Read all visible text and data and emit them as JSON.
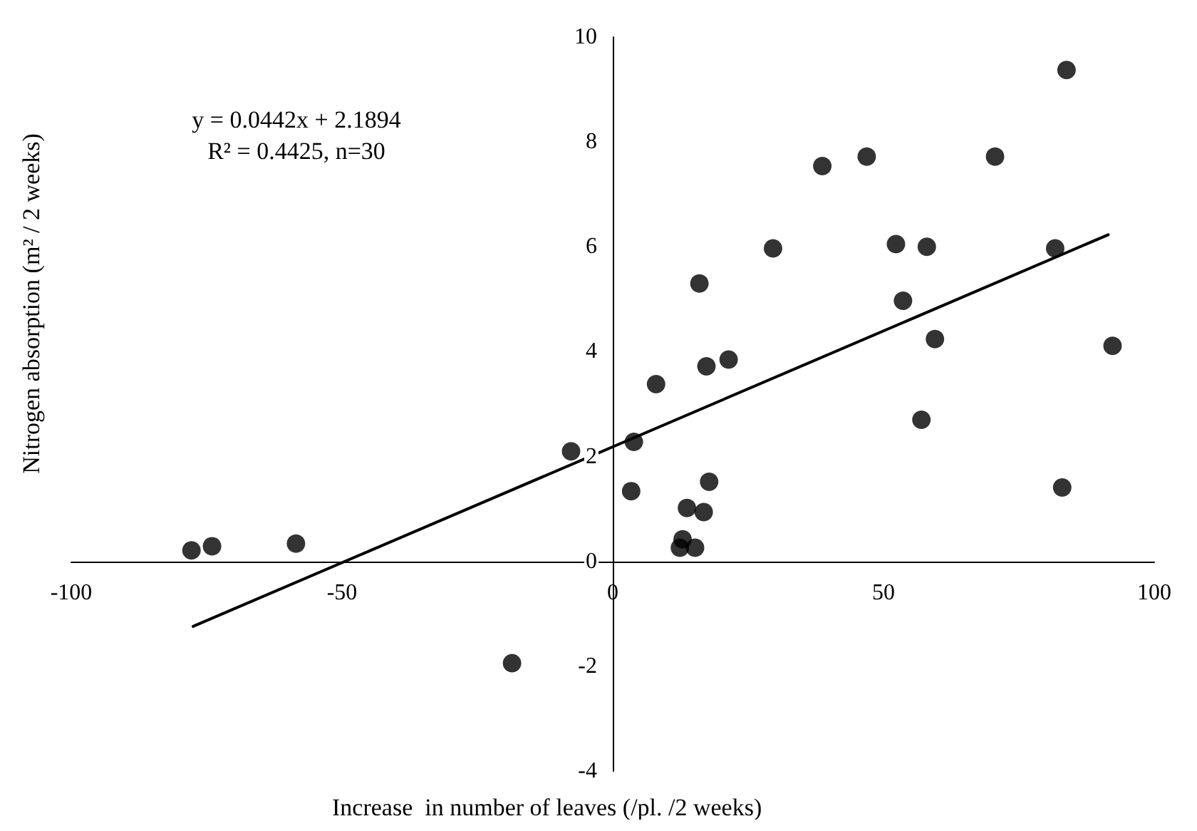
{
  "chart_data": {
    "type": "scatter",
    "xlabel": "Increase  in number of leaves (/pl. /2 weeks)",
    "ylabel": "Nitrogen absorption (m² / 2 weeks)",
    "annotations": [
      "y = 0.0442x + 2.1894",
      "R² = 0.4425, n=30"
    ],
    "xlim": [
      -100,
      100
    ],
    "xticks": [
      -100,
      -50,
      0,
      50,
      100
    ],
    "ylim": [
      -4,
      10
    ],
    "yticks": [
      -4,
      -2,
      0,
      2,
      4,
      6,
      8,
      10
    ],
    "grid": false,
    "marker": "circle",
    "series": [
      {
        "color": "#000000",
        "x": [
          -77.8,
          -74,
          -58.5,
          -7.7,
          -18.6,
          3.9,
          3.4,
          8,
          17.3,
          21.4,
          16,
          29.6,
          38.7,
          46.9,
          52.3,
          58,
          53.6,
          59.5,
          57,
          70.6,
          81.7,
          83.8,
          92.3,
          83,
          17.8,
          13.7,
          16.8,
          12.9,
          12.4,
          15.2
        ],
        "values": [
          0.21,
          0.29,
          0.34,
          2.1,
          -1.94,
          2.28,
          1.34,
          3.38,
          3.72,
          3.85,
          5.3,
          5.97,
          7.54,
          7.72,
          6.05,
          6.0,
          4.97,
          4.24,
          2.7,
          7.72,
          5.97,
          9.37,
          4.11,
          1.41,
          1.52,
          1.02,
          0.94,
          0.42,
          0.26,
          0.26
        ]
      },
      {
        "type": "line",
        "color": "#000000",
        "marker": "none",
        "line_style": "solid",
        "x": [
          -77.5,
          91.5
        ],
        "values": [
          -1.24,
          6.23
        ]
      }
    ]
  }
}
